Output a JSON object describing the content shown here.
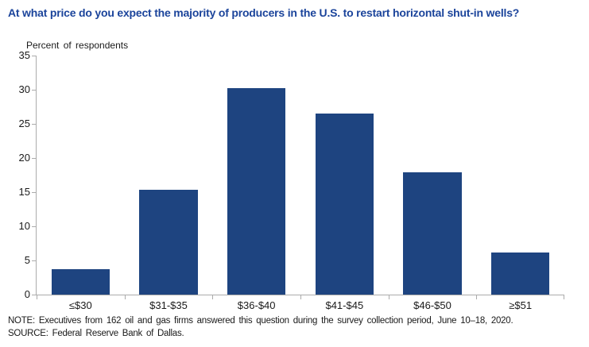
{
  "chart_data": {
    "type": "bar",
    "title": "At what price do you expect the majority of producers in the U.S. to restart horizontal shut-in wells?",
    "ylabel": "Percent of respondents",
    "xlabel": "",
    "categories": [
      "≤$30",
      "$31-$35",
      "$36-$40",
      "$41-$45",
      "$46-$50",
      "≥$51"
    ],
    "values": [
      3.7,
      15.4,
      30.2,
      26.5,
      17.9,
      6.2
    ],
    "ylim": [
      0,
      35
    ],
    "ytick_step": 5,
    "grid": false,
    "legend": "none",
    "bar_width_fraction": 0.66
  },
  "footer": {
    "note": "NOTE:  Executives  from 162 oil and gas firms answered  this question  during the survey  collection  period, June 10–18, 2020.",
    "source": "SOURCE:  Federal Reserve  Bank of Dallas."
  },
  "colors": {
    "title": "#1B449B",
    "bar": "#1E4480",
    "axis": "#ABABAB",
    "text": "#1A1A1A"
  }
}
